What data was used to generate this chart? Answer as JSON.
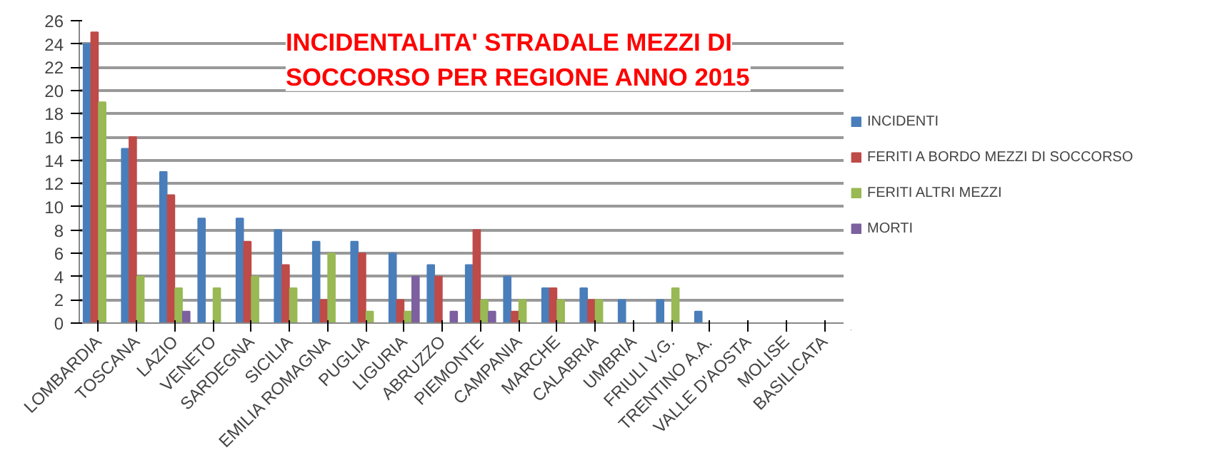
{
  "chart_data": {
    "type": "bar",
    "title": "INCIDENTALITA' STRADALE MEZZI DI\nSOCCORSO PER REGIONE ANNO 2015",
    "categories": [
      "LOMBARDIA",
      "TOSCANA",
      "LAZIO",
      "VENETO",
      "SARDEGNA",
      "SICILIA",
      "EMILIA ROMAGNA",
      "PUGLIA",
      "LIGURIA",
      "ABRUZZO",
      "PIEMONTE",
      "CAMPANIA",
      "MARCHE",
      "CALABRIA",
      "UMBRIA",
      "FRIULI V.G.",
      "TRENTINO A.A.",
      "VALLE D'AOSTA",
      "MOLISE",
      "BASILICATA"
    ],
    "series": [
      {
        "name": "INCIDENTI",
        "color": "#4a7ebb",
        "values": [
          24,
          15,
          13,
          9,
          9,
          8,
          7,
          7,
          6,
          5,
          5,
          4,
          3,
          3,
          2,
          2,
          1,
          0,
          0,
          0
        ]
      },
      {
        "name": "FERITI A BORDO MEZZI DI SOCCORSO",
        "color": "#be4b48",
        "values": [
          25,
          16,
          11,
          0,
          7,
          5,
          2,
          6,
          2,
          4,
          8,
          1,
          3,
          2,
          0,
          0,
          0,
          0,
          0,
          0
        ]
      },
      {
        "name": "FERITI ALTRI MEZZI",
        "color": "#98b954",
        "values": [
          19,
          4,
          3,
          3,
          4,
          3,
          6,
          1,
          1,
          0,
          2,
          2,
          2,
          2,
          0,
          3,
          0,
          0,
          0,
          0
        ]
      },
      {
        "name": "MORTI",
        "color": "#7d60a0",
        "values": [
          0,
          0,
          1,
          0,
          0,
          0,
          0,
          0,
          4,
          1,
          1,
          0,
          0,
          0,
          0,
          0,
          0,
          0,
          0,
          0
        ]
      }
    ],
    "ylim": [
      0,
      26
    ],
    "yticks": [
      0,
      2,
      4,
      6,
      8,
      10,
      12,
      14,
      16,
      18,
      20,
      22,
      24,
      26
    ],
    "grid": "y",
    "legend": "right"
  }
}
